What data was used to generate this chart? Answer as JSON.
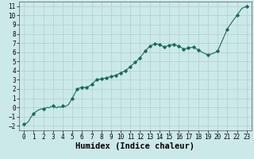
{
  "title": "",
  "xlabel": "Humidex (Indice chaleur)",
  "ylabel": "",
  "xlim": [
    -0.5,
    23.5
  ],
  "ylim": [
    -2.5,
    11.5
  ],
  "yticks": [
    -2,
    -1,
    0,
    1,
    2,
    3,
    4,
    5,
    6,
    7,
    8,
    9,
    10,
    11
  ],
  "xticks": [
    0,
    1,
    2,
    3,
    4,
    5,
    6,
    7,
    8,
    9,
    10,
    11,
    12,
    13,
    14,
    15,
    16,
    17,
    18,
    19,
    20,
    21,
    22,
    23
  ],
  "bg_color": "#cce9e9",
  "grid_color": "#b8d0d0",
  "line_color": "#1a6b5a",
  "marker_color": "#1a6b5a",
  "x": [
    0,
    0.15,
    0.3,
    0.5,
    0.7,
    0.85,
    1.0,
    1.2,
    1.4,
    1.6,
    1.8,
    2.0,
    2.2,
    2.4,
    2.6,
    2.8,
    3.0,
    3.2,
    3.4,
    3.6,
    3.8,
    4.0,
    4.3,
    4.6,
    5.0,
    5.5,
    6.0,
    6.5,
    7.0,
    7.5,
    8.0,
    8.5,
    9.0,
    9.5,
    10.0,
    10.5,
    11.0,
    11.5,
    12.0,
    12.5,
    13.0,
    13.5,
    14.0,
    14.5,
    15.0,
    15.5,
    16.0,
    16.5,
    17.0,
    17.5,
    18.0,
    18.5,
    19.0,
    19.5,
    20.0,
    20.5,
    21.0,
    21.5,
    22.0,
    22.5,
    23.0
  ],
  "y": [
    -1.8,
    -1.75,
    -1.7,
    -1.5,
    -1.1,
    -0.9,
    -0.7,
    -0.5,
    -0.35,
    -0.25,
    -0.15,
    -0.2,
    -0.1,
    0.0,
    -0.05,
    0.1,
    0.15,
    0.05,
    -0.05,
    0.1,
    0.0,
    0.2,
    0.1,
    0.3,
    1.0,
    2.0,
    2.2,
    2.15,
    2.5,
    3.0,
    3.1,
    3.2,
    3.35,
    3.5,
    3.75,
    4.0,
    4.45,
    4.9,
    5.4,
    6.1,
    6.65,
    6.9,
    6.85,
    6.55,
    6.75,
    6.85,
    6.65,
    6.35,
    6.45,
    6.55,
    6.25,
    5.95,
    5.7,
    5.85,
    6.1,
    7.3,
    8.5,
    9.3,
    10.0,
    10.75,
    11.0
  ],
  "marker_x": [
    0,
    1.0,
    2.0,
    3.0,
    4.0,
    5.0,
    5.5,
    6.0,
    6.5,
    7.0,
    7.5,
    8.0,
    8.5,
    9.0,
    9.5,
    10.0,
    10.5,
    11.0,
    11.5,
    12.0,
    12.5,
    13.0,
    13.5,
    14.0,
    14.5,
    15.0,
    15.5,
    16.0,
    16.5,
    17.0,
    17.5,
    18.0,
    19.0,
    20.0,
    21.0,
    22.0,
    23.0
  ],
  "marker_y": [
    -1.8,
    -0.7,
    -0.2,
    0.15,
    0.2,
    1.0,
    2.0,
    2.2,
    2.15,
    2.5,
    3.0,
    3.1,
    3.2,
    3.35,
    3.5,
    3.75,
    4.0,
    4.45,
    4.9,
    5.4,
    6.1,
    6.65,
    6.9,
    6.85,
    6.55,
    6.75,
    6.85,
    6.65,
    6.35,
    6.45,
    6.55,
    6.25,
    5.7,
    6.1,
    8.5,
    10.0,
    11.0
  ],
  "tick_fontsize": 5.5,
  "xlabel_fontsize": 7.5
}
